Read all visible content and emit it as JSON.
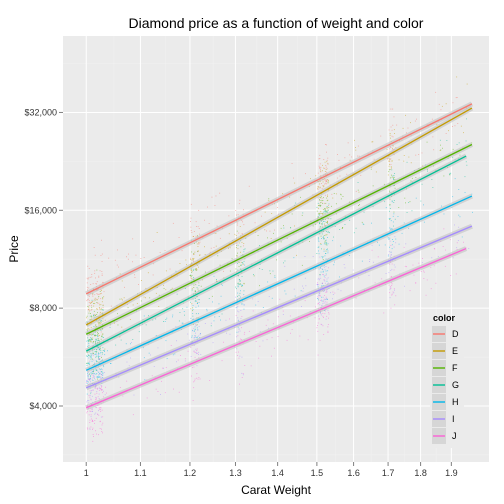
{
  "chart_data": {
    "type": "scatter",
    "title": "Diamond price as a function of weight and color",
    "xlabel": "Carat Weight",
    "ylabel": "Price",
    "x_scale": "log",
    "y_scale": "log",
    "xlim": [
      0.96,
      2.03
    ],
    "ylim": [
      2690,
      55000
    ],
    "x_ticks": [
      1,
      1.1,
      1.2,
      1.3,
      1.4,
      1.5,
      1.6,
      1.7,
      1.8,
      1.9
    ],
    "x_tick_labels": [
      "1",
      "1.1",
      "1.2",
      "1.3",
      "1.4",
      "1.5",
      "1.6",
      "1.7",
      "1.8",
      "1.9"
    ],
    "y_ticks": [
      4000,
      8000,
      16000,
      32000
    ],
    "y_tick_labels": [
      "$4,000",
      "$8,000",
      "$16,000",
      "$32,000"
    ],
    "grid": true,
    "background": "#ebebeb",
    "legend": {
      "title": "color",
      "position": "bottom-right inside"
    },
    "series": [
      {
        "name": "D",
        "color": "#F8766D",
        "x": [
          1.0,
          1.97
        ],
        "y": [
          8850,
          34000
        ]
      },
      {
        "name": "E",
        "color": "#C49A00",
        "x": [
          1.0,
          1.97
        ],
        "y": [
          7100,
          33000
        ]
      },
      {
        "name": "F",
        "color": "#53B400",
        "x": [
          1.0,
          1.97
        ],
        "y": [
          6650,
          25500
        ]
      },
      {
        "name": "G",
        "color": "#00C094",
        "x": [
          1.0,
          1.95
        ],
        "y": [
          5900,
          23500
        ]
      },
      {
        "name": "H",
        "color": "#00B6EB",
        "x": [
          1.0,
          1.97
        ],
        "y": [
          5150,
          17700
        ]
      },
      {
        "name": "I",
        "color": "#A58AFF",
        "x": [
          1.0,
          1.97
        ],
        "y": [
          4550,
          14300
        ]
      },
      {
        "name": "J",
        "color": "#FB61D7",
        "x": [
          1.0,
          1.95
        ],
        "y": [
          3950,
          12200
        ]
      }
    ],
    "legend_order": [
      "D",
      "E",
      "F",
      "G",
      "H",
      "I",
      "J"
    ]
  }
}
